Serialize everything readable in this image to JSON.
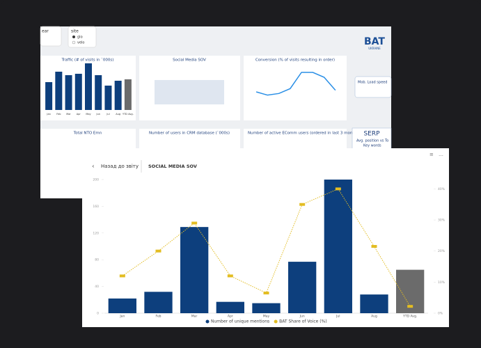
{
  "ui": {
    "filters": {
      "year": "ear",
      "site": "site",
      "options": [
        "glo",
        "velo"
      ]
    },
    "logo": {
      "brand": "BAT",
      "country": "UKRAINE"
    },
    "panels": {
      "traffic": {
        "title": "Traffic (# of visits in `000s)",
        "categories": [
          "Jan",
          "Feb",
          "Mar",
          "Apr",
          "May",
          "Jun",
          "Jul",
          "Aug",
          "YTD Avg."
        ],
        "values": [
          40,
          55,
          50,
          52,
          67,
          50,
          35,
          42,
          44
        ]
      },
      "sov": "Social Media SOV",
      "conversion": {
        "title": "Conversion (% of visits resulting in order)",
        "values": [
          1.2,
          1.0,
          1.1,
          1.4,
          2.4,
          2.4,
          2.1,
          1.3
        ],
        "ylim": [
          0,
          3
        ]
      },
      "mob": "Mob. Load speed",
      "nto": "Total NTO Emn",
      "crm": "Number of users in CRM database (`000s)",
      "active": "Number of active EComm users (ordered in last 3 months) in `000s",
      "serp": {
        "title": "SERP",
        "sub": "Avg. position vs To",
        "kw": "Key words"
      }
    },
    "back": "Назад до звіту",
    "page_title": "SOCIAL MEDIA SOV"
  },
  "chart_data": {
    "type": "bar",
    "categories": [
      "Jan",
      "Feb",
      "Mar",
      "Apr",
      "May",
      "Jun",
      "Jul",
      "Aug",
      "YTD Avg."
    ],
    "series": [
      {
        "name": "Number of unique mentions",
        "colors": [
          "#0d3f7d",
          "#0d3f7d",
          "#0d3f7d",
          "#0d3f7d",
          "#0d3f7d",
          "#0d3f7d",
          "#0d3f7d",
          "#0d3f7d",
          "#6b6b6b"
        ],
        "values": [
          22,
          32,
          129,
          17,
          15,
          77,
          200,
          28,
          65
        ]
      },
      {
        "name": "BAT Share of Voice (%)",
        "color": "#e3bd22",
        "axis": "y2",
        "values": [
          12,
          20,
          29,
          12,
          6.5,
          35,
          40,
          21.5,
          2.2
        ]
      }
    ],
    "ylim": [
      0,
      200
    ],
    "yticks": [
      0,
      40,
      80,
      120,
      160,
      200
    ],
    "y2lim": [
      0,
      43
    ],
    "y2ticks": [
      {
        "value": 0,
        "label": "0%"
      },
      {
        "value": 10,
        "label": "10%"
      },
      {
        "value": 20,
        "label": "20%"
      },
      {
        "value": 30,
        "label": "30%"
      },
      {
        "value": 40,
        "label": "40%"
      }
    ]
  }
}
